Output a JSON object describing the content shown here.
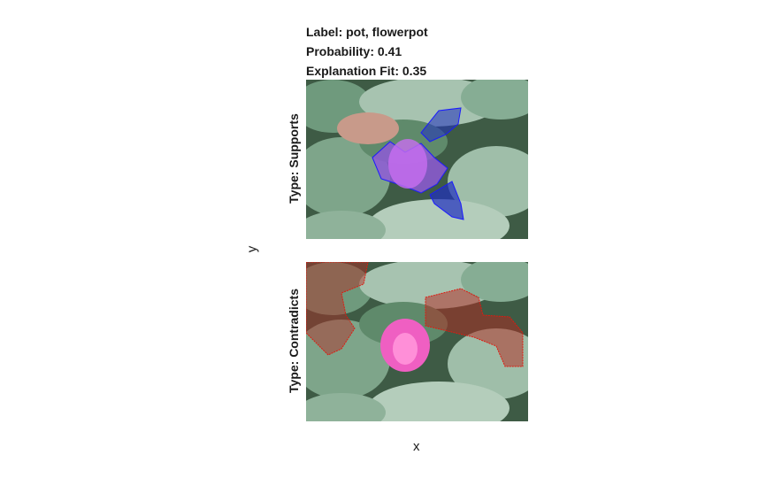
{
  "header": {
    "label_text": "Label: pot, flowerpot",
    "probability_text": "Probability: 0.41",
    "fit_text": "Explanation Fit: 0.35"
  },
  "chart_data": {
    "type": "image-explanation",
    "label": "pot, flowerpot",
    "probability": 0.41,
    "explanation_fit": 0.35,
    "xlabel": "x",
    "ylabel": "y",
    "panels": [
      {
        "type_label": "Type: Supports",
        "overlay_color": "#1f2fbf",
        "outline_color": "#1a1aff"
      },
      {
        "type_label": "Type: Contradicts",
        "overlay_color": "#b3261e",
        "outline_color": "#e0190f"
      }
    ],
    "image_subject": "pink lotus flower among green lotus leaves"
  }
}
